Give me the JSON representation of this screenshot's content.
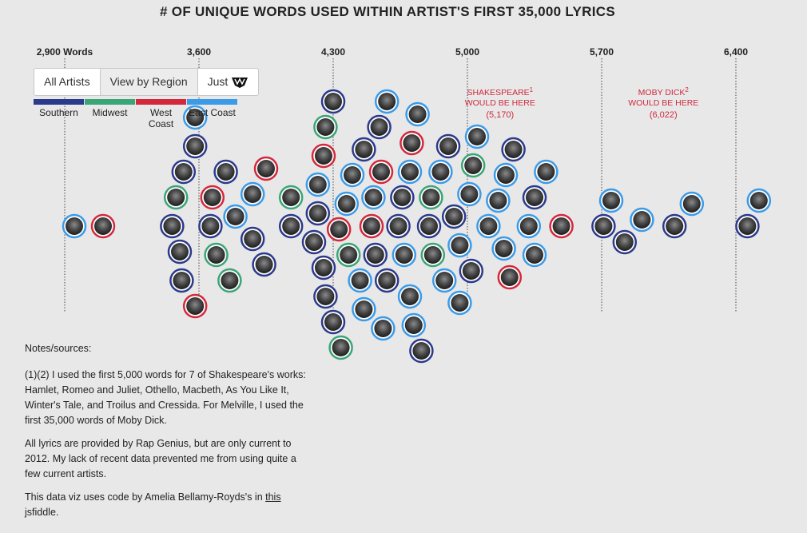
{
  "title": "# OF UNIQUE WORDS USED WITHIN ARTIST'S FIRST 35,000 LYRICS",
  "tabs": [
    {
      "label": "All Artists",
      "active": false
    },
    {
      "label": "View by Region",
      "active": true
    },
    {
      "label": "Just",
      "icon": "wu-tang-logo-icon",
      "active": false
    }
  ],
  "regions": [
    {
      "label": "Southern",
      "color": "#2b3a8c"
    },
    {
      "label": "Midwest",
      "color": "#3aa576"
    },
    {
      "label": "West Coast",
      "color": "#d4283c"
    },
    {
      "label": "East Coast",
      "color": "#3b9be8"
    }
  ],
  "colors": {
    "southern": "#2b3a8c",
    "midwest": "#3aa576",
    "west": "#d4283c",
    "east": "#3b9be8",
    "reference": "#d0283c"
  },
  "chart_data": {
    "type": "scatter",
    "title": "# OF UNIQUE WORDS USED WITHIN ARTIST'S FIRST 35,000 LYRICS",
    "xlim": [
      2900,
      6400
    ],
    "ticks": [
      "2,900 Words",
      "3,600",
      "4,300",
      "5,000",
      "5,700",
      "6,400"
    ],
    "tick_values": [
      2900,
      3600,
      4300,
      5000,
      5700,
      6400
    ],
    "reference_lines": [
      {
        "label": "SHAKESPEARE",
        "sup": "1",
        "line2": "WOULD BE HERE",
        "value_label": "(5,170)",
        "value": 5170
      },
      {
        "label": "MOBY DICK",
        "sup": "2",
        "line2": "WOULD BE HERE",
        "value_label": "(6,022)",
        "value": 6022
      }
    ],
    "series": [
      {
        "region": "Southern",
        "values": [
          3510,
          3580,
          3660,
          3740,
          3880,
          3940,
          3460,
          3500,
          3520,
          4200,
          4250,
          4080,
          4520,
          4660,
          4900,
          4220,
          4260,
          4300,
          4580,
          4640,
          4800,
          4930,
          5020,
          5240,
          5350,
          5710,
          6080,
          5820,
          6460,
          4460,
          4300,
          4610,
          4760,
          4540
        ]
      },
      {
        "region": "Midwest",
        "values": [
          3480,
          3690,
          3760,
          4080,
          4620,
          4340,
          4810,
          5030,
          4260,
          4380,
          4820
        ]
      },
      {
        "region": "West Coast",
        "values": [
          3100,
          3580,
          3670,
          3950,
          4250,
          4330,
          4710,
          5220,
          5490,
          4500,
          4550
        ]
      },
      {
        "region": "East Coast",
        "values": [
          2950,
          3580,
          3790,
          3880,
          4400,
          4580,
          4700,
          4860,
          5050,
          5160,
          5320,
          5200,
          4440,
          4460,
          4560,
          4670,
          4720,
          4880,
          4960,
          5010,
          5190,
          5350,
          5410,
          5750,
          5910,
          6170,
          6520,
          4510,
          4620,
          4700,
          4740,
          4960,
          5110,
          4220,
          4370,
          4560
        ]
      }
    ]
  },
  "notes": {
    "heading": "Notes/sources:",
    "p1": "(1)(2) I used the first 5,000 words for 7 of Shakespeare's works: Hamlet, Romeo and Juliet, Othello, Macbeth, As You Like It, Winter's Tale, and Troilus and Cressida. For Melville, I used the first 35,000 words of Moby Dick.",
    "p2": "All lyrics are provided by Rap Genius, but are only current to 2012. My lack of recent data prevented me from using quite a few current artists.",
    "p3_before": "This data viz uses code by Amelia Bellamy-Royds's in ",
    "p3_link": "this",
    "p3_after": " jsfiddle."
  }
}
